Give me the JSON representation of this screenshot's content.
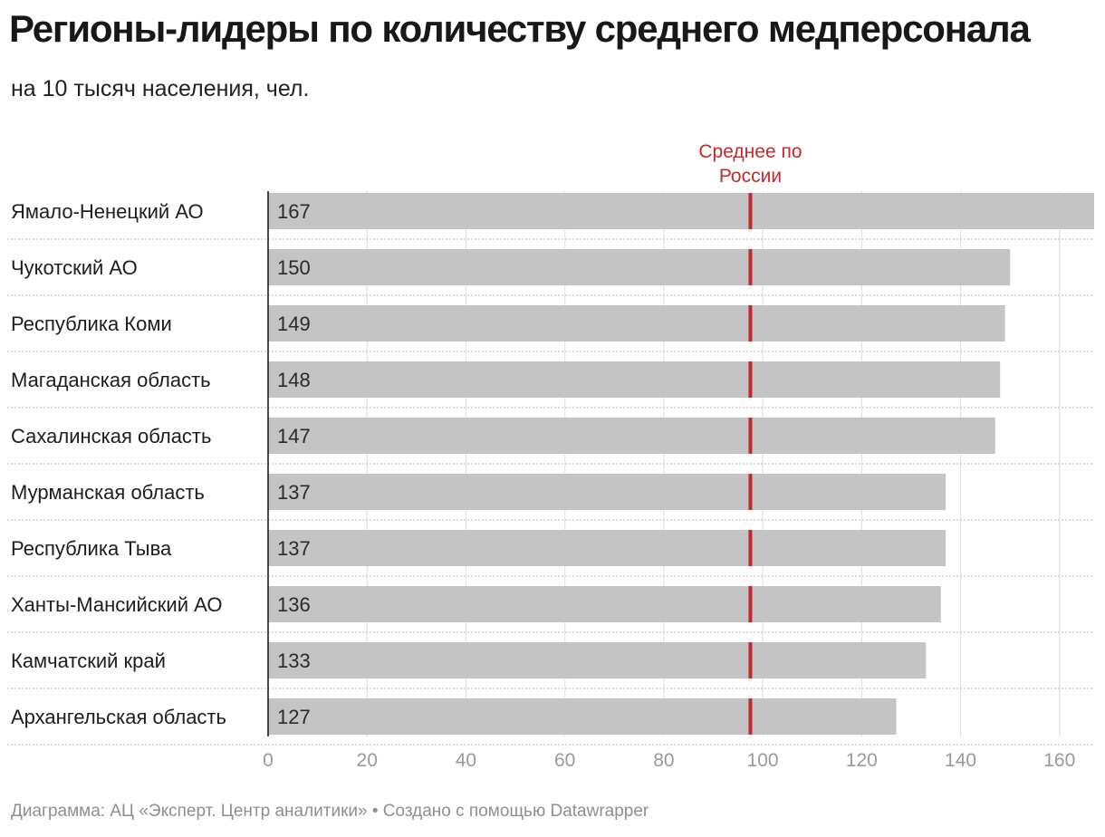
{
  "title": "Регионы-лидеры по количеству среднего медперсонала",
  "subtitle": "на 10 тысяч населения, чел.",
  "footer": "Диаграмма: АЦ «Эксперт. Центр аналитики» • Создано с помощью Datawrapper",
  "colors": {
    "bar": "#c4c4c4",
    "reference": "#c42a2a",
    "axis_text": "#9a9a9a",
    "grid": "#e2e2e2"
  },
  "chart_data": {
    "type": "bar",
    "orientation": "horizontal",
    "categories": [
      "Ямало-Ненецкий АО",
      "Чукотский АО",
      "Республика Коми",
      "Магаданская область",
      "Сахалинская область",
      "Мурманская область",
      "Республика Тыва",
      "Ханты-Мансийский АО",
      "Камчатский край",
      "Архангельская область"
    ],
    "values": [
      167,
      150,
      149,
      148,
      147,
      137,
      137,
      136,
      133,
      127
    ],
    "value_labels": [
      "167",
      "150",
      "149",
      "148",
      "147",
      "137",
      "137",
      "136",
      "133",
      "127"
    ],
    "xlim": [
      0,
      167
    ],
    "ticks": [
      0,
      20,
      40,
      60,
      80,
      100,
      120,
      140,
      160
    ],
    "tick_labels": [
      "0",
      "20",
      "40",
      "60",
      "80",
      "100",
      "120",
      "140",
      "160"
    ],
    "reference_line": {
      "value": 97.5,
      "label_line1": "Среднее по",
      "label_line2": "России"
    },
    "grid": true
  }
}
